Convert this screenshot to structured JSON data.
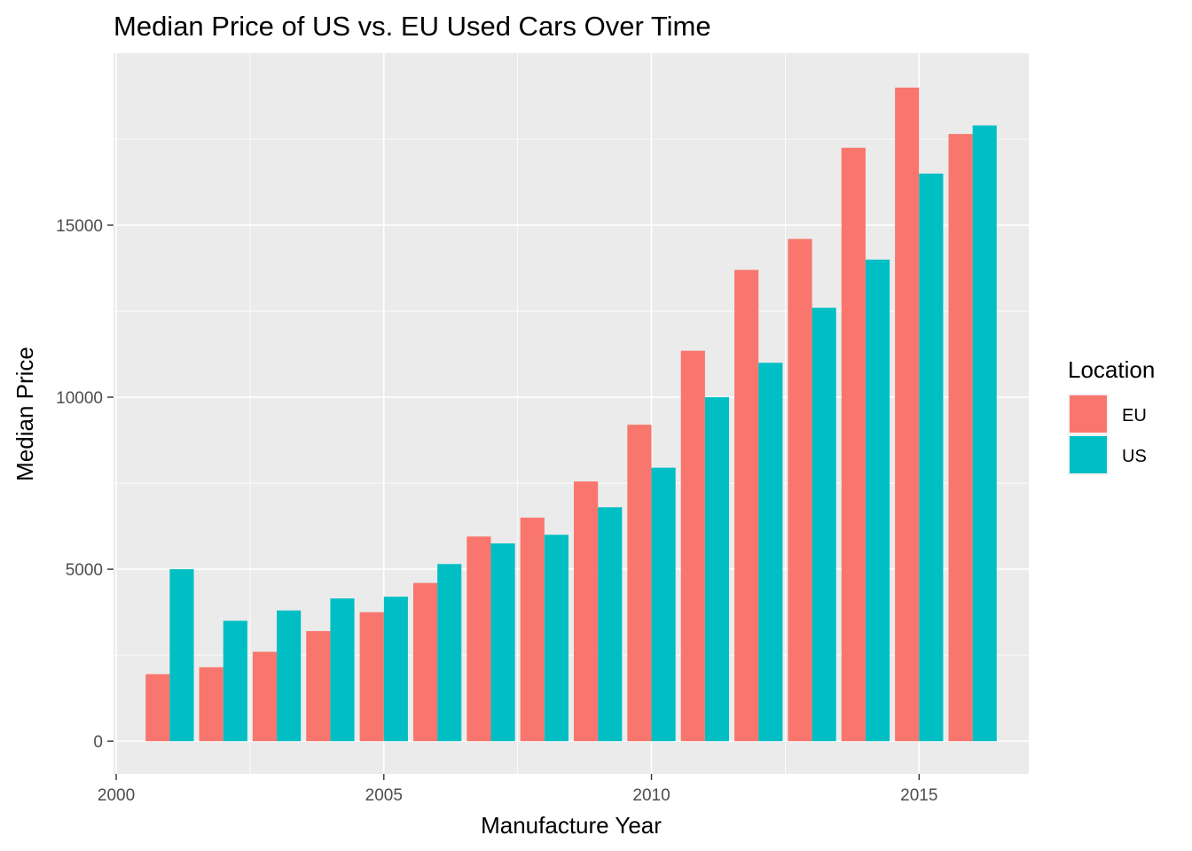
{
  "chart_data": {
    "type": "bar",
    "title": "Median Price of US vs. EU Used Cars Over Time",
    "xlabel": "Manufacture Year",
    "ylabel": "Median Price",
    "x": [
      2001,
      2002,
      2003,
      2004,
      2005,
      2006,
      2007,
      2008,
      2009,
      2010,
      2011,
      2012,
      2013,
      2014,
      2015,
      2016
    ],
    "xlim": [
      1999.95,
      2017.05
    ],
    "ylim": [
      -950,
      20000
    ],
    "x_ticks": [
      "2000",
      "2005",
      "2010",
      "2015"
    ],
    "y_ticks": [
      "0",
      "5000",
      "10000",
      "15000"
    ],
    "grid": true,
    "legend_position": "right",
    "legend_title": "Location",
    "series": [
      {
        "name": "EU",
        "color": "#F8766D",
        "values": [
          1950,
          2150,
          2600,
          3200,
          3750,
          4600,
          5950,
          6500,
          7550,
          9200,
          11350,
          13700,
          14600,
          17250,
          19000,
          17650
        ]
      },
      {
        "name": "US",
        "color": "#00BFC4",
        "values": [
          5000,
          3500,
          3800,
          4150,
          4200,
          5150,
          5750,
          6000,
          6800,
          7950,
          10000,
          11000,
          12600,
          14000,
          16500,
          17900
        ]
      }
    ]
  }
}
